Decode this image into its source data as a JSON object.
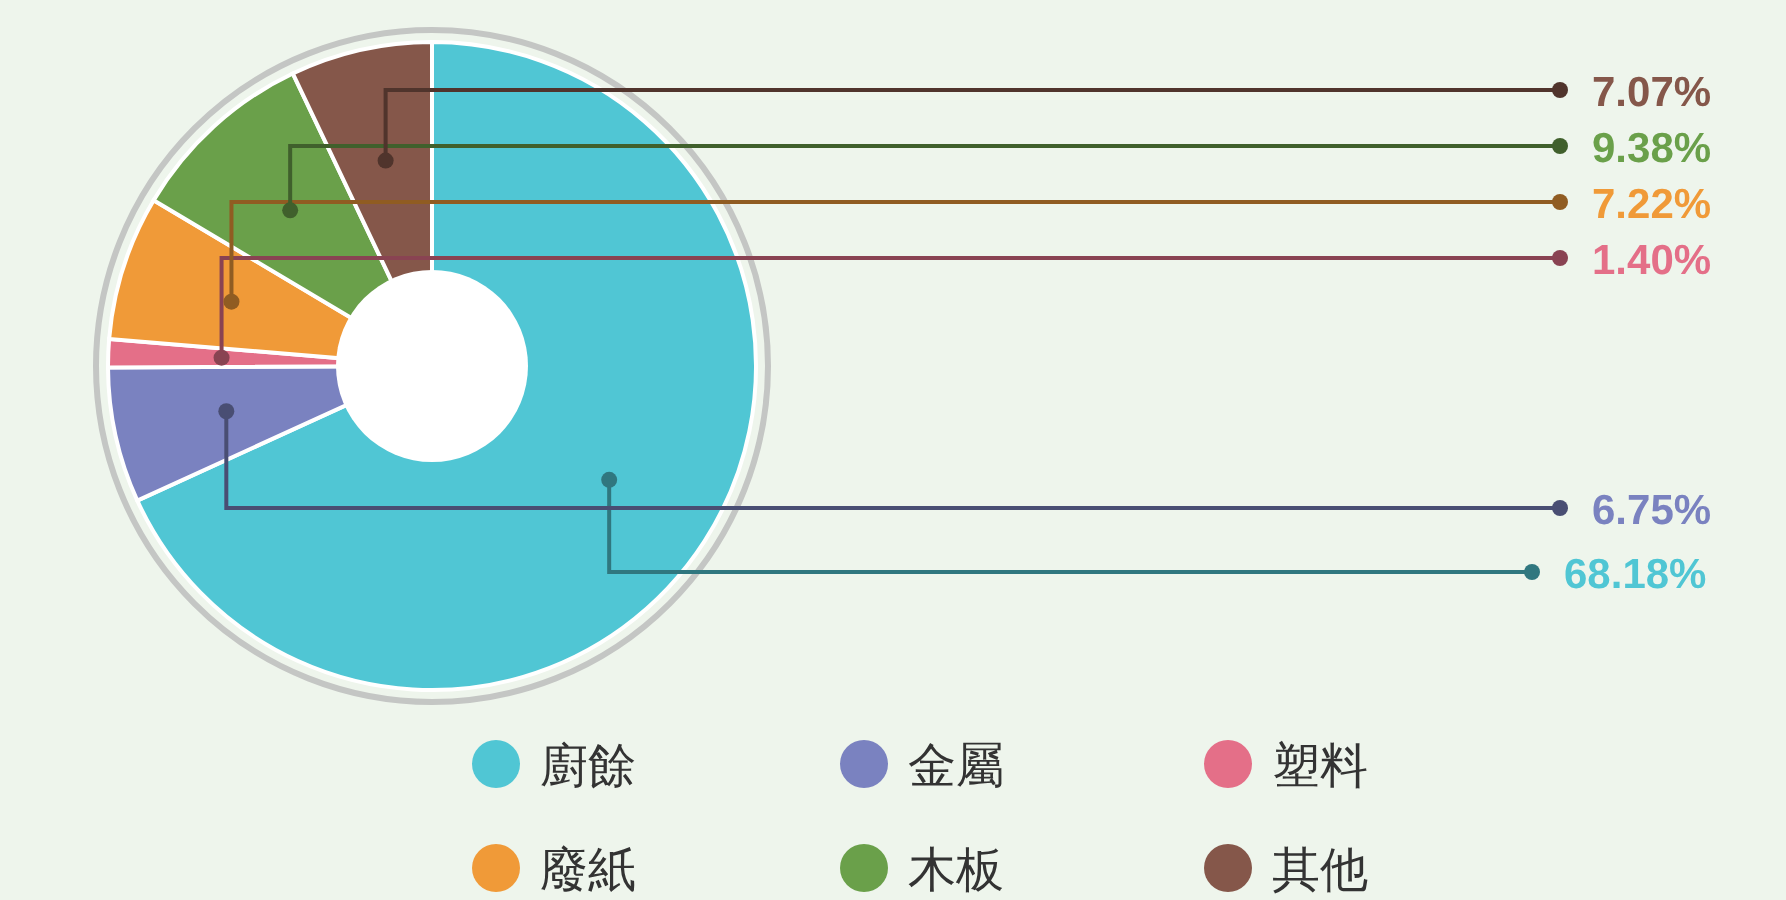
{
  "chart_data": {
    "type": "donut",
    "categories": [
      "廚餘",
      "金屬",
      "塑料",
      "廢紙",
      "木板",
      "其他"
    ],
    "values": [
      68.18,
      6.75,
      1.4,
      7.22,
      9.38,
      7.07
    ],
    "colors": [
      "#50c6d4",
      "#7a82c0",
      "#e46f88",
      "#f09a38",
      "#6aa04a",
      "#85574a"
    ],
    "value_labels": [
      "68.18%",
      "6.75%",
      "1.40%",
      "7.22%",
      "9.38%",
      "7.07%"
    ],
    "legend": "bottom"
  }
}
